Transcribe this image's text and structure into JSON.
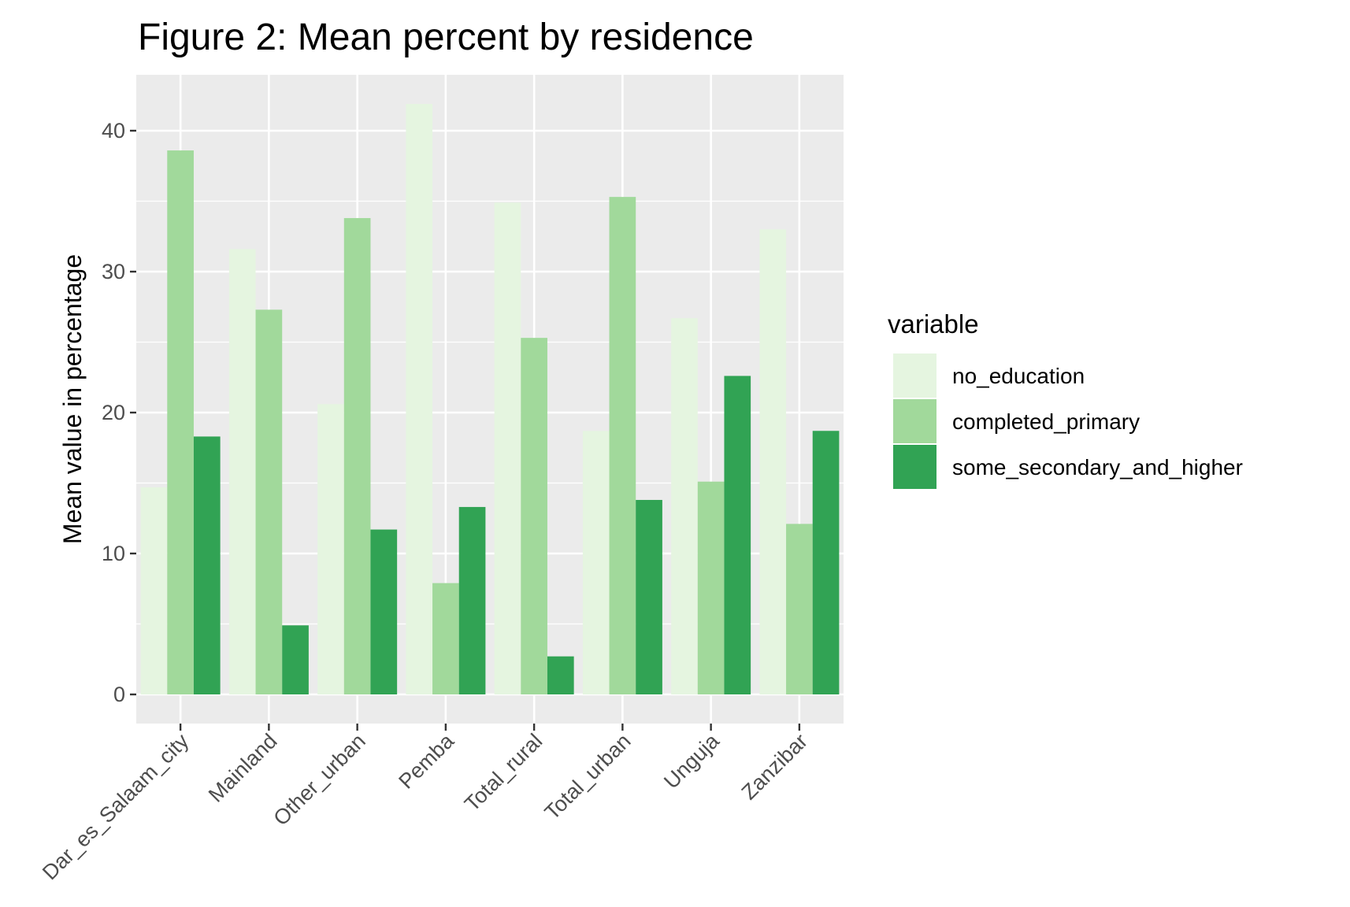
{
  "chart_data": {
    "type": "bar",
    "title": "Figure 2: Mean percent by residence",
    "xlabel": "",
    "ylabel": "Mean value in percentage",
    "ylim": [
      0,
      44
    ],
    "yticks": [
      0,
      10,
      20,
      30,
      40
    ],
    "grid": true,
    "legend_title": "variable",
    "legend_position": "right",
    "categories": [
      "Dar_es_Salaam_city",
      "Mainland",
      "Other_urban",
      "Pemba",
      "Total_rural",
      "Total_urban",
      "Unguja",
      "Zanzibar"
    ],
    "series": [
      {
        "name": "no_education",
        "color": "#e5f5e0",
        "values": [
          14.7,
          31.6,
          20.6,
          41.9,
          34.9,
          18.7,
          26.7,
          33.0
        ]
      },
      {
        "name": "completed_primary",
        "color": "#a1d99b",
        "values": [
          38.6,
          27.3,
          33.8,
          7.9,
          25.3,
          35.3,
          15.1,
          12.1
        ]
      },
      {
        "name": "some_secondary_and_higher",
        "color": "#31a354",
        "values": [
          18.3,
          4.9,
          11.7,
          13.3,
          2.7,
          13.8,
          22.6,
          18.7
        ]
      }
    ]
  }
}
